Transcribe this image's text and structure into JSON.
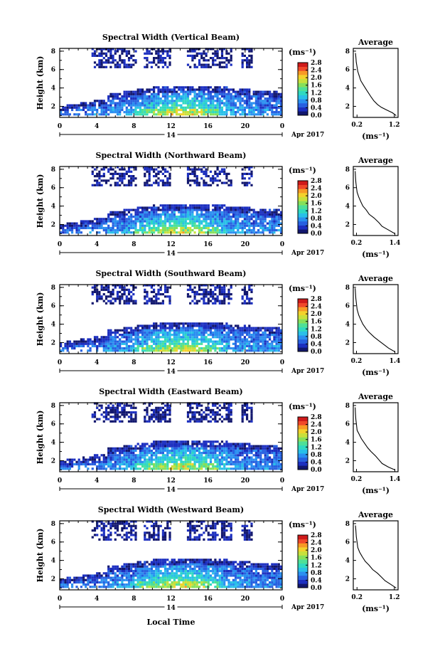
{
  "x_axis_label": "Local Time",
  "date_label": "Apr 2017",
  "day_label": "14",
  "height_label": "Height (km)",
  "unit_label": "(ms⁻¹)",
  "average_title": "Average",
  "colorbar": {
    "ticks": [
      "0.0",
      "0.4",
      "0.8",
      "1.2",
      "1.6",
      "2.0",
      "2.4",
      "2.8"
    ],
    "colors": [
      "#12176e",
      "#1c2fc0",
      "#2760e0",
      "#2a8ff0",
      "#29c0e8",
      "#2fd9c0",
      "#4ee098",
      "#86e05a",
      "#c8e03c",
      "#f3d22c",
      "#f79a25",
      "#f0482a",
      "#cf1a1a"
    ]
  },
  "chart_data": [
    {
      "type": "heatmap",
      "title": "Spectral Width (Vertical Beam)",
      "xlabel": "",
      "ylabel": "Height (km)",
      "x_ticks": [
        "0",
        "4",
        "8",
        "12",
        "16",
        "20",
        "0"
      ],
      "xlim": [
        0,
        24
      ],
      "y_ticks": [
        "2",
        "4",
        "6",
        "8"
      ],
      "ylim": [
        0.8,
        8.3
      ],
      "colorbar_range": [
        0.0,
        2.8
      ],
      "profile": {
        "title": "Average",
        "xlabel": "(ms⁻¹)",
        "x_ticks": [
          "0.2",
          "1.2"
        ],
        "xlim": [
          0.1,
          1.3
        ],
        "y_ticks": [
          "2",
          "4",
          "6",
          "8"
        ],
        "ylim": [
          0.8,
          8.3
        ],
        "points": [
          [
            1.25,
            1.0
          ],
          [
            1.15,
            1.3
          ],
          [
            1.0,
            1.6
          ],
          [
            0.85,
            1.9
          ],
          [
            0.75,
            2.2
          ],
          [
            0.65,
            2.6
          ],
          [
            0.58,
            3.0
          ],
          [
            0.5,
            3.5
          ],
          [
            0.42,
            4.0
          ],
          [
            0.36,
            4.4
          ],
          [
            0.3,
            4.8
          ],
          [
            0.26,
            5.3
          ],
          [
            0.22,
            5.8
          ],
          [
            0.2,
            6.3
          ],
          [
            0.18,
            6.8
          ],
          [
            0.17,
            7.3
          ],
          [
            0.16,
            7.8
          ]
        ]
      }
    },
    {
      "type": "heatmap",
      "title": "Spectral Width (Northward Beam)",
      "xlabel": "",
      "ylabel": "Height (km)",
      "x_ticks": [
        "0",
        "4",
        "8",
        "12",
        "16",
        "20",
        "0"
      ],
      "xlim": [
        0,
        24
      ],
      "y_ticks": [
        "2",
        "4",
        "6",
        "8"
      ],
      "ylim": [
        0.8,
        8.3
      ],
      "colorbar_range": [
        0.0,
        2.8
      ],
      "profile": {
        "title": "Average",
        "xlabel": "(ms⁻¹)",
        "x_ticks": [
          "0.2",
          "1.4"
        ],
        "xlim": [
          0.1,
          1.5
        ],
        "y_ticks": [
          "2",
          "4",
          "6",
          "8"
        ],
        "ylim": [
          0.8,
          8.3
        ],
        "points": [
          [
            1.4,
            1.0
          ],
          [
            1.2,
            1.4
          ],
          [
            1.0,
            1.8
          ],
          [
            0.9,
            2.2
          ],
          [
            0.75,
            2.7
          ],
          [
            0.6,
            3.1
          ],
          [
            0.5,
            3.6
          ],
          [
            0.4,
            4.0
          ],
          [
            0.33,
            4.5
          ],
          [
            0.27,
            5.0
          ],
          [
            0.22,
            5.5
          ],
          [
            0.2,
            6.0
          ],
          [
            0.18,
            6.6
          ],
          [
            0.17,
            7.2
          ],
          [
            0.16,
            7.8
          ]
        ]
      }
    },
    {
      "type": "heatmap",
      "title": "Spectral Width (Southward Beam)",
      "xlabel": "",
      "ylabel": "Height (km)",
      "x_ticks": [
        "0",
        "4",
        "8",
        "12",
        "16",
        "20",
        "0"
      ],
      "xlim": [
        0,
        24
      ],
      "y_ticks": [
        "2",
        "4",
        "6",
        "8"
      ],
      "ylim": [
        0.8,
        8.3
      ],
      "colorbar_range": [
        0.0,
        2.8
      ],
      "profile": {
        "title": "Average",
        "xlabel": "(ms⁻¹)",
        "x_ticks": [
          "0.2",
          "1.4"
        ],
        "xlim": [
          0.1,
          1.5
        ],
        "y_ticks": [
          "2",
          "4",
          "6",
          "8"
        ],
        "ylim": [
          0.8,
          8.3
        ],
        "points": [
          [
            1.4,
            1.0
          ],
          [
            1.2,
            1.4
          ],
          [
            1.05,
            1.8
          ],
          [
            0.9,
            2.2
          ],
          [
            0.75,
            2.6
          ],
          [
            0.6,
            3.1
          ],
          [
            0.5,
            3.5
          ],
          [
            0.4,
            4.0
          ],
          [
            0.33,
            4.5
          ],
          [
            0.27,
            5.0
          ],
          [
            0.22,
            5.6
          ],
          [
            0.2,
            6.2
          ],
          [
            0.18,
            6.8
          ],
          [
            0.17,
            7.4
          ],
          [
            0.16,
            7.9
          ]
        ]
      }
    },
    {
      "type": "heatmap",
      "title": "Spectral Width (Eastward Beam)",
      "xlabel": "",
      "ylabel": "Height (km)",
      "x_ticks": [
        "0",
        "4",
        "8",
        "12",
        "16",
        "20",
        "0"
      ],
      "xlim": [
        0,
        24
      ],
      "y_ticks": [
        "2",
        "4",
        "6",
        "8"
      ],
      "ylim": [
        0.8,
        8.3
      ],
      "colorbar_range": [
        0.0,
        2.8
      ],
      "profile": {
        "title": "Average",
        "xlabel": "(ms⁻¹)",
        "x_ticks": [
          "0.2",
          "1.4"
        ],
        "xlim": [
          0.1,
          1.5
        ],
        "y_ticks": [
          "2",
          "4",
          "6",
          "8"
        ],
        "ylim": [
          0.8,
          8.3
        ],
        "points": [
          [
            1.4,
            1.0
          ],
          [
            1.2,
            1.3
          ],
          [
            1.0,
            1.7
          ],
          [
            0.9,
            2.1
          ],
          [
            0.8,
            2.5
          ],
          [
            0.65,
            3.0
          ],
          [
            0.55,
            3.4
          ],
          [
            0.45,
            3.9
          ],
          [
            0.35,
            4.4
          ],
          [
            0.28,
            4.9
          ],
          [
            0.22,
            5.3
          ],
          [
            0.2,
            5.9
          ],
          [
            0.18,
            6.5
          ],
          [
            0.17,
            7.1
          ],
          [
            0.16,
            7.8
          ]
        ]
      }
    },
    {
      "type": "heatmap",
      "title": "Spectral Width (Westward Beam)",
      "xlabel": "Local Time",
      "ylabel": "Height (km)",
      "x_ticks": [
        "0",
        "4",
        "8",
        "12",
        "16",
        "20",
        "0"
      ],
      "xlim": [
        0,
        24
      ],
      "y_ticks": [
        "2",
        "4",
        "6",
        "8"
      ],
      "ylim": [
        0.8,
        8.3
      ],
      "colorbar_range": [
        0.0,
        2.8
      ],
      "profile": {
        "title": "Average",
        "xlabel": "(ms⁻¹)",
        "x_ticks": [
          "0.2",
          "1.2"
        ],
        "xlim": [
          0.1,
          1.3
        ],
        "y_ticks": [
          "2",
          "4",
          "6",
          "8"
        ],
        "ylim": [
          0.8,
          8.3
        ],
        "points": [
          [
            1.25,
            1.0
          ],
          [
            1.1,
            1.4
          ],
          [
            0.95,
            1.8
          ],
          [
            0.85,
            2.2
          ],
          [
            0.75,
            2.6
          ],
          [
            0.62,
            3.0
          ],
          [
            0.52,
            3.5
          ],
          [
            0.42,
            3.9
          ],
          [
            0.34,
            4.4
          ],
          [
            0.27,
            4.9
          ],
          [
            0.22,
            5.4
          ],
          [
            0.2,
            6.0
          ],
          [
            0.18,
            6.6
          ],
          [
            0.17,
            7.2
          ],
          [
            0.16,
            7.8
          ]
        ]
      }
    }
  ]
}
